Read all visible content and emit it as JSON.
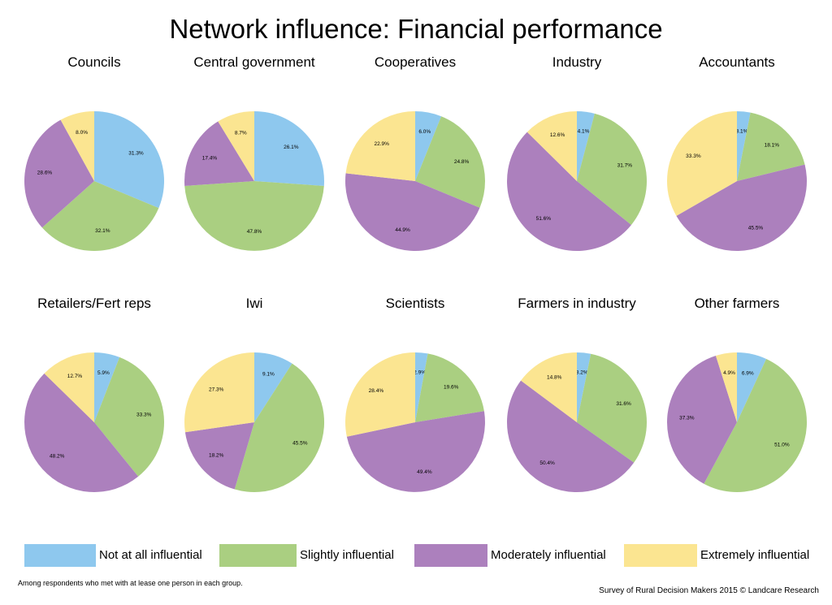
{
  "title": "Network influence: Financial performance",
  "colors": {
    "not_at_all": "#8ec8ee",
    "slightly": "#aacf81",
    "moderately": "#ac80bd",
    "extremely": "#fbe591"
  },
  "chart_data": {
    "type": "pie",
    "categories": [
      "Not at all influential",
      "Slightly influential",
      "Moderately influential",
      "Extremely influential"
    ],
    "charts": [
      {
        "title": "Councils",
        "values": [
          31.3,
          32.1,
          28.6,
          8.0
        ],
        "labels": [
          "31.3%",
          "32.1%",
          "28.6%",
          "8.0%"
        ]
      },
      {
        "title": "Central government",
        "values": [
          26.1,
          47.8,
          17.4,
          8.7
        ],
        "labels": [
          "26.1%",
          "47.8%",
          "17.4%",
          "8.7%"
        ]
      },
      {
        "title": "Cooperatives",
        "values": [
          6.0,
          24.8,
          44.9,
          22.9
        ],
        "labels": [
          "6.0%",
          "24.8%",
          "44.9%",
          "22.9%"
        ]
      },
      {
        "title": "Industry",
        "values": [
          4.1,
          31.7,
          51.6,
          12.6
        ],
        "labels": [
          "4.1%",
          "31.7%",
          "51.6%",
          "12.6%"
        ]
      },
      {
        "title": "Accountants",
        "values": [
          3.1,
          18.1,
          45.5,
          33.3
        ],
        "labels": [
          "3.1%",
          "18.1%",
          "45.5%",
          "33.3%"
        ]
      },
      {
        "title": "Retailers/Fert reps",
        "values": [
          5.9,
          33.3,
          48.2,
          12.7
        ],
        "labels": [
          "5.9%",
          "33.3%",
          "48.2%",
          "12.7%"
        ]
      },
      {
        "title": "Iwi",
        "values": [
          9.1,
          45.5,
          18.2,
          27.3
        ],
        "labels": [
          "9.1%",
          "45.5%",
          "18.2%",
          "27.3%"
        ]
      },
      {
        "title": "Scientists",
        "values": [
          2.9,
          19.6,
          49.4,
          28.4
        ],
        "labels": [
          "2.9%",
          "19.6%",
          "49.4%",
          "28.4%"
        ]
      },
      {
        "title": "Farmers in industry",
        "values": [
          3.2,
          31.6,
          50.4,
          14.8
        ],
        "labels": [
          "3.2%",
          "31.6%",
          "50.4%",
          "14.8%"
        ]
      },
      {
        "title": "Other farmers",
        "values": [
          6.9,
          51.0,
          37.3,
          4.9
        ],
        "labels": [
          "6.9%",
          "51.0%",
          "37.3%",
          "4.9%"
        ]
      }
    ]
  },
  "legend": {
    "items": [
      {
        "label": "Not at all influential"
      },
      {
        "label": "Slightly influential"
      },
      {
        "label": "Moderately influential"
      },
      {
        "label": "Extremely influential"
      }
    ]
  },
  "footnote": "Among respondents who met with at lease one person in each group.",
  "credit": "Survey of Rural Decision Makers 2015 © Landcare Research"
}
